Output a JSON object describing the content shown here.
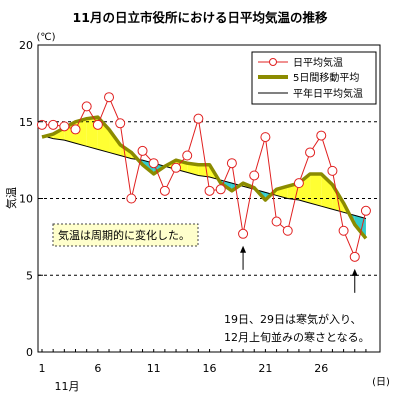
{
  "chart_data": {
    "type": "line",
    "title": "11月の日立市役所における日平均気温の推移",
    "yunit": "(℃)",
    "ylabel": "気温",
    "xunit": "(日)",
    "month_label": "11月",
    "ylim": [
      0,
      20
    ],
    "yticks": [
      0,
      5,
      10,
      15,
      20
    ],
    "xticks": [
      1,
      6,
      11,
      16,
      21,
      26
    ],
    "x": [
      1,
      2,
      3,
      4,
      5,
      6,
      7,
      8,
      9,
      10,
      11,
      12,
      13,
      14,
      15,
      16,
      17,
      18,
      19,
      20,
      21,
      22,
      23,
      24,
      25,
      26,
      27,
      28,
      29,
      30
    ],
    "series": [
      {
        "name": "日平均気温",
        "color": "#e02020",
        "values": [
          14.8,
          14.8,
          14.7,
          14.5,
          16.0,
          14.8,
          16.6,
          14.9,
          10.0,
          13.1,
          12.3,
          10.5,
          12.0,
          12.8,
          15.2,
          10.5,
          10.6,
          12.3,
          7.7,
          11.5,
          14.0,
          8.5,
          7.9,
          11.0,
          13.0,
          14.1,
          11.8,
          7.9,
          6.2,
          9.2
        ]
      },
      {
        "name": "5日間移動平均",
        "color": "#8b8b00",
        "values": [
          14.0,
          14.2,
          14.6,
          15.0,
          15.2,
          15.3,
          14.5,
          13.5,
          13.0,
          12.2,
          11.6,
          12.1,
          12.5,
          12.3,
          12.2,
          12.2,
          11.0,
          10.5,
          11.0,
          10.7,
          9.9,
          10.6,
          10.8,
          11.0,
          11.6,
          11.6,
          10.9,
          9.7,
          8.3,
          7.4
        ]
      },
      {
        "name": "平年日平均気温",
        "color": "#000000",
        "values": [
          14.1,
          13.9,
          13.8,
          13.6,
          13.4,
          13.2,
          13.0,
          12.8,
          12.6,
          12.5,
          12.3,
          12.1,
          11.9,
          11.7,
          11.5,
          11.4,
          11.2,
          11.0,
          10.8,
          10.6,
          10.4,
          10.2,
          10.0,
          9.9,
          9.7,
          9.5,
          9.3,
          9.1,
          8.9,
          8.7
        ]
      }
    ],
    "fill_above_color": "#ffff33",
    "fill_below_color": "#33cccc",
    "grid": "horizontal-dashed",
    "legend_position": "top-right",
    "annotations": {
      "note1": "気温は周期的に変化した。",
      "note2_line1": "19日、29日は寒気が入り、",
      "note2_line2": "12月上旬並みの寒さとなる。",
      "arrow_days": [
        19,
        29
      ]
    }
  }
}
